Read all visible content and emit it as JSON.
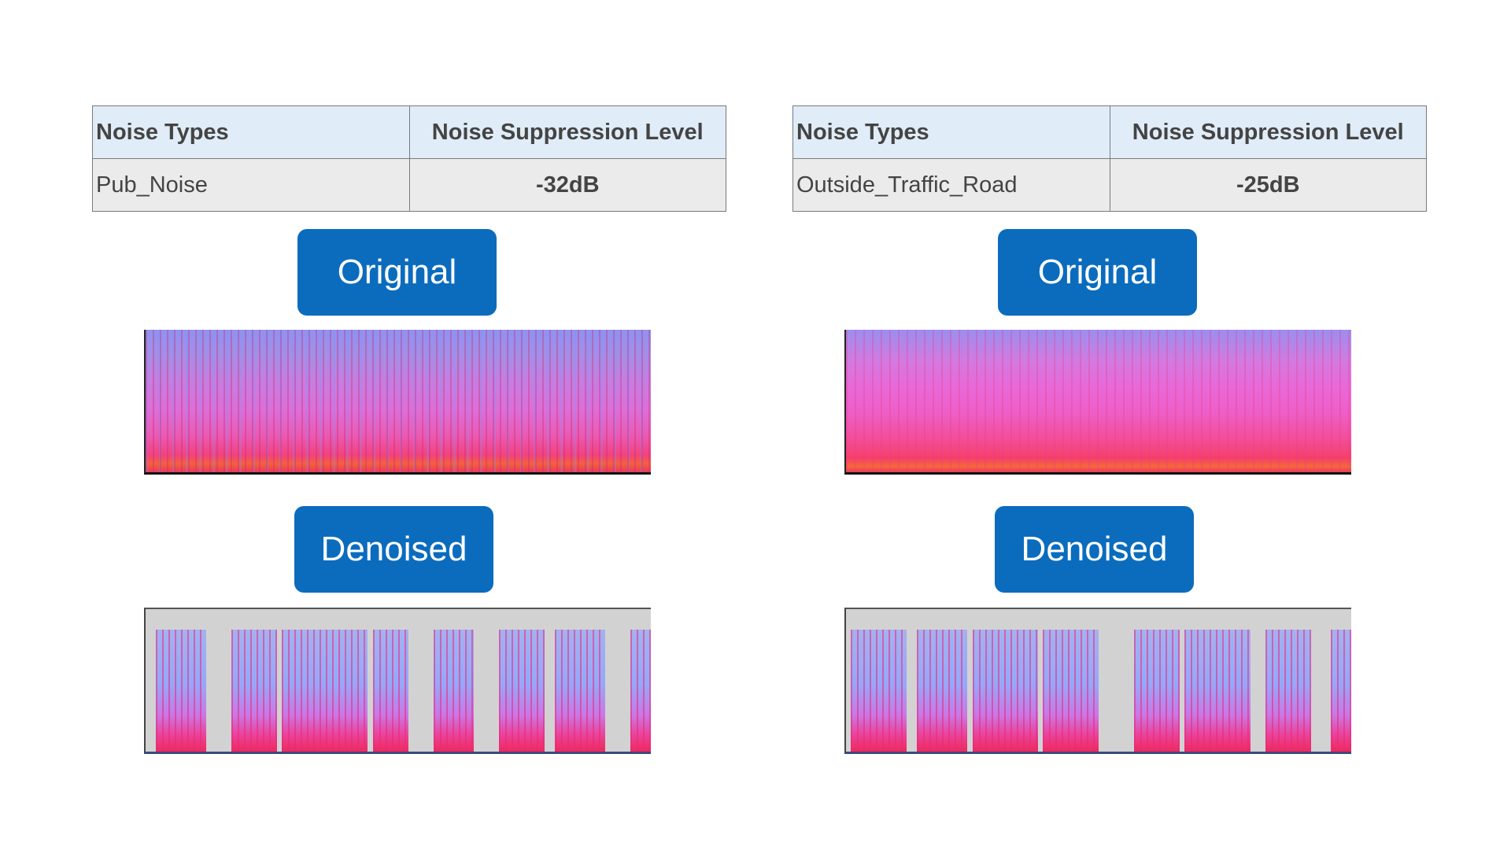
{
  "panels": [
    {
      "table": {
        "headers": [
          "Noise Types",
          "Noise Suppression Level"
        ],
        "row": {
          "noise_type": "Pub_Noise",
          "level": "-32dB"
        }
      },
      "original_label": "Original",
      "denoised_label": "Denoised",
      "denoised_bursts": [
        {
          "start": 0.02,
          "end": 0.12
        },
        {
          "start": 0.17,
          "end": 0.26
        },
        {
          "start": 0.27,
          "end": 0.44
        },
        {
          "start": 0.45,
          "end": 0.52
        },
        {
          "start": 0.57,
          "end": 0.65
        },
        {
          "start": 0.7,
          "end": 0.79
        },
        {
          "start": 0.81,
          "end": 0.91
        },
        {
          "start": 0.96,
          "end": 1.0
        }
      ]
    },
    {
      "table": {
        "headers": [
          "Noise Types",
          "Noise Suppression Level"
        ],
        "row": {
          "noise_type": "Outside_Traffic_Road",
          "level": "-25dB"
        }
      },
      "original_label": "Original",
      "denoised_label": "Denoised",
      "denoised_bursts": [
        {
          "start": 0.01,
          "end": 0.12
        },
        {
          "start": 0.14,
          "end": 0.24
        },
        {
          "start": 0.25,
          "end": 0.38
        },
        {
          "start": 0.39,
          "end": 0.5
        },
        {
          "start": 0.57,
          "end": 0.66
        },
        {
          "start": 0.67,
          "end": 0.8
        },
        {
          "start": 0.83,
          "end": 0.92
        },
        {
          "start": 0.96,
          "end": 1.0
        }
      ]
    }
  ],
  "colors": {
    "button_bg": "#0b6cbd",
    "button_text": "#ffffff",
    "table_header_bg": "#e0ecf7",
    "table_row_bg": "#ebebeb",
    "denoised_bg": "#d2d2d2"
  }
}
